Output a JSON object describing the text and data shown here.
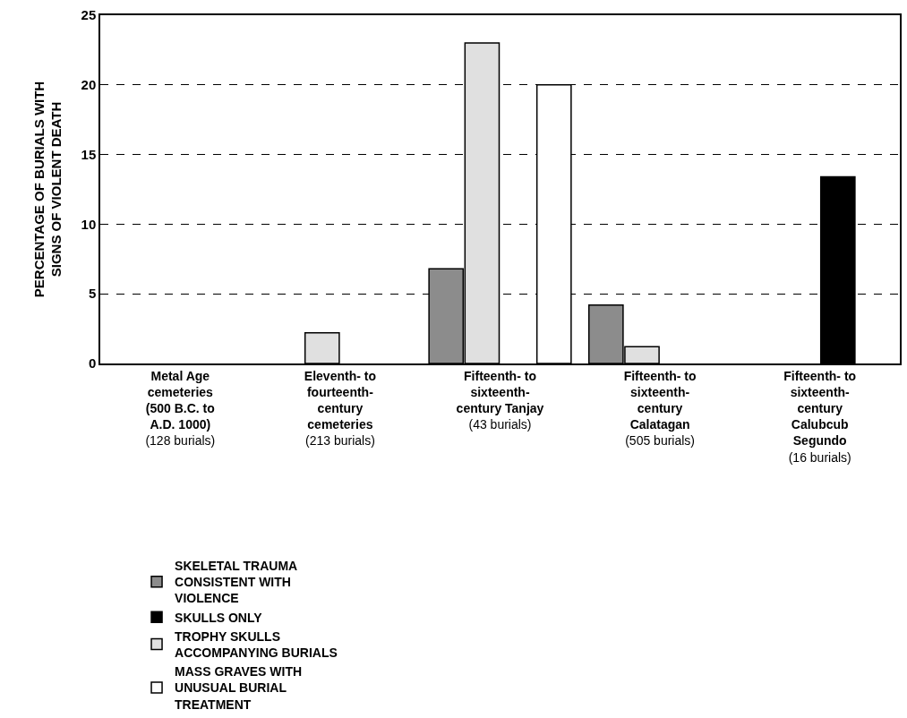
{
  "chart_data": {
    "type": "bar",
    "ylabel": "PERCENTAGE OF BURIALS WITH SIGNS OF VIOLENT DEATH",
    "categories": [
      "Metal Age cemeteries (500 B.C. to A.D. 1000) (128 burials)",
      "Eleventh- to fourteenth-century cemeteries (213 burials)",
      "Fifteenth- to sixteenth-century Tanjay (43 burials)",
      "Fifteenth- to sixteenth-century Calatagan (505 burials)",
      "Fifteenth- to sixteenth-century Calubcub Segundo (16 burials)"
    ],
    "series": [
      {
        "name": "SKELETAL TRAUMA CONSISTENT WITH VIOLENCE",
        "color": "#8c8c8c",
        "values": [
          null,
          null,
          6.8,
          4.2,
          null
        ]
      },
      {
        "name": "TROPHY SKULLS ACCOMPANYING BURIALS",
        "color": "#e0e0e0",
        "values": [
          null,
          2.2,
          23,
          1.2,
          null
        ]
      },
      {
        "name": "SKULLS ONLY",
        "color": "#000000",
        "values": [
          null,
          null,
          null,
          null,
          13.4
        ]
      },
      {
        "name": "MASS GRAVES WITH UNUSUAL BURIAL TREATMENT",
        "color": "#ffffff",
        "values": [
          null,
          null,
          20,
          null,
          null
        ]
      }
    ],
    "ylim": [
      0,
      25
    ],
    "yticks": [
      0,
      5,
      10,
      15,
      20,
      25
    ],
    "grid": "y",
    "legend": "bottom"
  }
}
